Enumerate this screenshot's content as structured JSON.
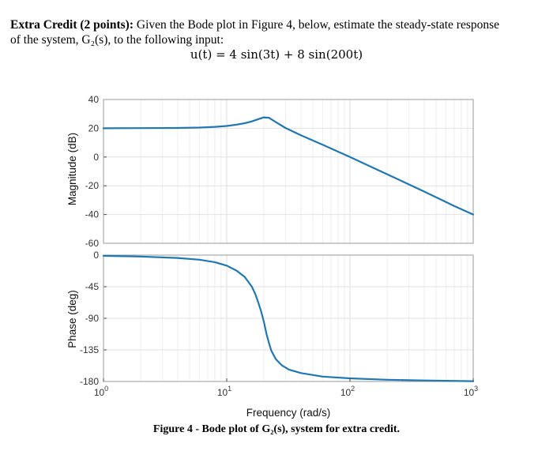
{
  "question": {
    "bold_prefix": "Extra Credit (2 points):",
    "line1_rest": " Given the Bode plot in Figure 4, below, estimate the steady-state response",
    "line2": "of the system, G₂(s), to the following input:",
    "equation": "u(t) = 4 sin(3t) + 8 sin(200t)"
  },
  "caption": "Figure 4 - Bode plot of G₂(s), system for extra credit.",
  "chart_data": [
    {
      "type": "line",
      "xscale": "log",
      "xlim": [
        1,
        1000
      ],
      "ylim": [
        -60,
        40
      ],
      "yticks": [
        -60,
        -40,
        -20,
        0,
        20,
        40
      ],
      "ylabel": "Magnitude (dB)",
      "grid": true,
      "color": "#1f77b4",
      "x": [
        1,
        2,
        4,
        6,
        8,
        10,
        12,
        14,
        16,
        18,
        20,
        22,
        25,
        30,
        40,
        60,
        100,
        200,
        400,
        700,
        1000
      ],
      "y": [
        20,
        20.1,
        20.2,
        20.5,
        21,
        21.6,
        22.5,
        23.5,
        24.8,
        26.3,
        27.6,
        27.3,
        24.3,
        20.2,
        15.1,
        8.5,
        0,
        -12,
        -24,
        -34,
        -40
      ]
    },
    {
      "type": "line",
      "xscale": "log",
      "xlim": [
        1,
        1000
      ],
      "ylim": [
        -180,
        0
      ],
      "yticks": [
        -180,
        -135,
        -90,
        -45,
        0
      ],
      "ylabel": "Phase (deg)",
      "xlabel": "Frequency (rad/s)",
      "xticks": [
        "10^0",
        "10^1",
        "10^2",
        "10^3"
      ],
      "grid": true,
      "color": "#1f77b4",
      "x": [
        1,
        2,
        4,
        6,
        8,
        10,
        12,
        14,
        16,
        17,
        18,
        19,
        20,
        21,
        22,
        23,
        25,
        28,
        32,
        40,
        60,
        100,
        200,
        400,
        1000
      ],
      "y": [
        -1,
        -2,
        -4,
        -6.5,
        -10,
        -15,
        -22,
        -31,
        -45,
        -55,
        -67,
        -80,
        -95,
        -112,
        -125,
        -136,
        -148,
        -157,
        -163,
        -168,
        -173,
        -175.5,
        -177.5,
        -178.5,
        -179.5
      ]
    }
  ]
}
